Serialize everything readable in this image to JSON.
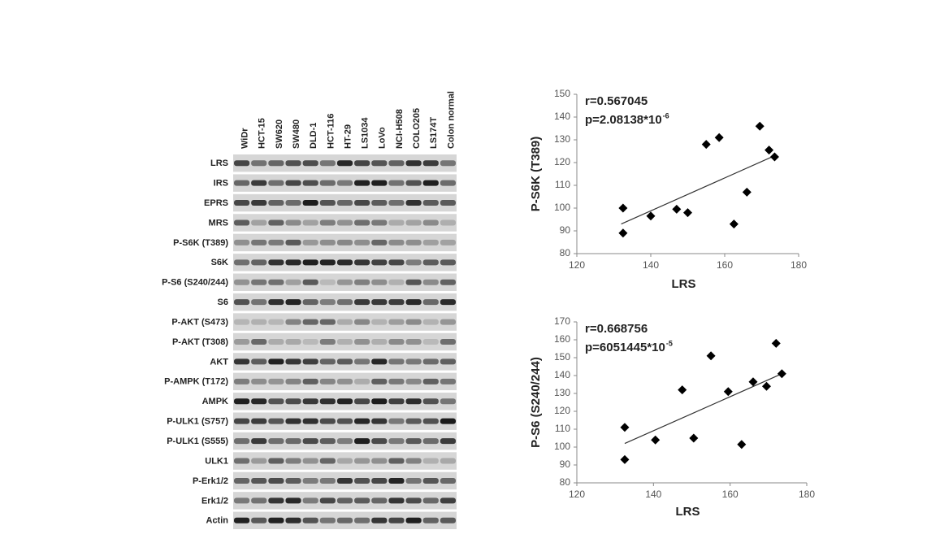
{
  "blot": {
    "lanes": [
      "WiDr",
      "HCT-15",
      "SW620",
      "SW480",
      "DLD-1",
      "HCT-116",
      "HT-29",
      "LS1034",
      "LoVo",
      "NCI-H508",
      "COLO205",
      "LS174T",
      "Colon normal"
    ],
    "rows": [
      "LRS",
      "IRS",
      "EPRS",
      "MRS",
      "P-S6K (T389)",
      "S6K",
      "P-S6 (S240/244)",
      "S6",
      "P-AKT (S473)",
      "P-AKT (T308)",
      "AKT",
      "P-AMPK (T172)",
      "AMPK",
      "P-ULK1 (S757)",
      "P-ULK1 (S555)",
      "ULK1",
      "P-Erk1/2",
      "Erk1/2",
      "Actin"
    ]
  },
  "chart_data": [
    {
      "type": "scatter",
      "x_label": "LRS",
      "y_label": "P-S6K (T389)",
      "annotations": [
        "r=0.567045",
        "p=2.08138*10"
      ],
      "annotation_superscript": "-6",
      "x": [
        132.5,
        132.5,
        140,
        147,
        150,
        155,
        158.5,
        162.5,
        166,
        169.5,
        172,
        173.5
      ],
      "values": [
        100,
        89,
        96.5,
        99.5,
        98,
        128,
        131,
        93,
        107,
        136,
        125.5,
        122.5
      ],
      "trend_line": {
        "x": [
          132,
          173.5
        ],
        "y": [
          93,
          123
        ]
      },
      "color": "#000000",
      "xlim": [
        120,
        180
      ],
      "xticks": [
        120,
        140,
        160,
        180
      ],
      "ylim": [
        80,
        150
      ],
      "yticks": [
        80,
        90,
        100,
        110,
        120,
        130,
        140,
        150
      ]
    },
    {
      "type": "scatter",
      "x_label": "LRS",
      "y_label": "P-S6 (S240/244)",
      "annotations": [
        "r=0.668756",
        "p=6051445*10"
      ],
      "annotation_superscript": "-5",
      "x": [
        132.5,
        132.5,
        140.5,
        147.5,
        150.5,
        155,
        159.5,
        163,
        166,
        169.5,
        172,
        173.5
      ],
      "values": [
        111,
        93,
        104,
        132,
        105,
        151,
        131,
        101.5,
        136.5,
        134,
        158,
        141
      ],
      "trend_line": {
        "x": [
          132.5,
          173.5
        ],
        "y": [
          102,
          141
        ]
      },
      "color": "#000000",
      "xlim": [
        120,
        180
      ],
      "xticks": [
        120,
        140,
        160,
        180
      ],
      "ylim": [
        80,
        170
      ],
      "yticks": [
        80,
        90,
        100,
        110,
        120,
        130,
        140,
        150,
        160,
        170
      ]
    }
  ]
}
